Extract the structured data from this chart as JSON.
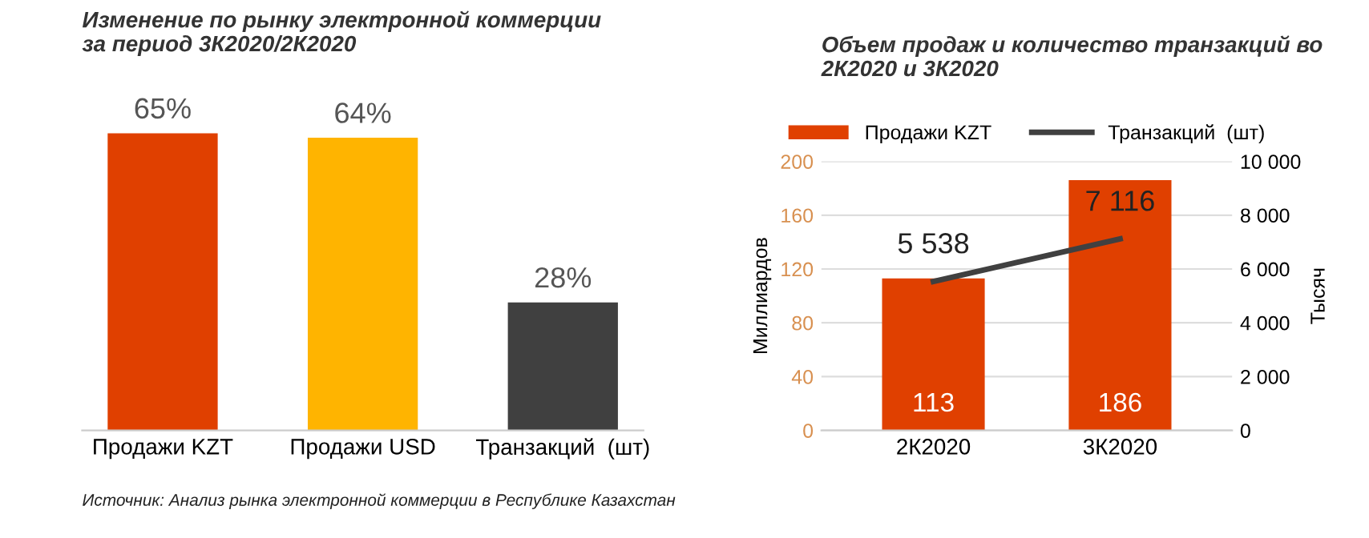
{
  "chart_data": [
    {
      "type": "bar",
      "title": "Изменение по рынку электронной коммерции за период 3К2020/2К2020",
      "categories": [
        "Продажи KZT",
        "Продажи USD",
        "Транзакций  (шт)"
      ],
      "values": [
        65,
        64,
        28
      ],
      "colors": [
        "#e04000",
        "#ffb400",
        "#404040"
      ],
      "data_labels": true,
      "value_labels": [
        "65%",
        "64%",
        "28%"
      ],
      "grid": false,
      "legend": false,
      "tick_labels": "x",
      "annotations": [
        "Источник: Анализ рынка электронной коммерции в Республике Казахстан"
      ]
    },
    {
      "type": "bar",
      "title": "Объем продаж и количество транзакций во 2К2020 и 3К2020",
      "categories": [
        "2К2020",
        "3К2020"
      ],
      "ylabel": "Миллиардов",
      "y2label": "Тысяч",
      "ylim": [
        0,
        200
      ],
      "yticks": [
        0,
        40,
        80,
        120,
        160,
        200
      ],
      "y2lim": [
        0,
        10000
      ],
      "y2ticks": [
        0,
        {
          "value": 2000,
          "label": "2 000"
        },
        {
          "value": 4000,
          "label": "4 000"
        },
        {
          "value": 6000,
          "label": "6 000"
        },
        {
          "value": 8000,
          "label": "8 000"
        },
        {
          "value": 10000,
          "label": "10 000"
        }
      ],
      "grid": "y",
      "legend": "top",
      "series": [
        {
          "name": "Продажи KZT",
          "type": "bar",
          "color": "#e04000",
          "values": [
            113,
            186
          ],
          "value_labels": [
            "113",
            "186"
          ]
        },
        {
          "name": "Транзакций  (шт)",
          "type": "line",
          "axis": "y2",
          "color": "#404040",
          "values": [
            5538,
            7116
          ],
          "value_labels": [
            "5 538",
            "7 116"
          ],
          "marker": "none",
          "line_style": "solid"
        }
      ]
    }
  ]
}
